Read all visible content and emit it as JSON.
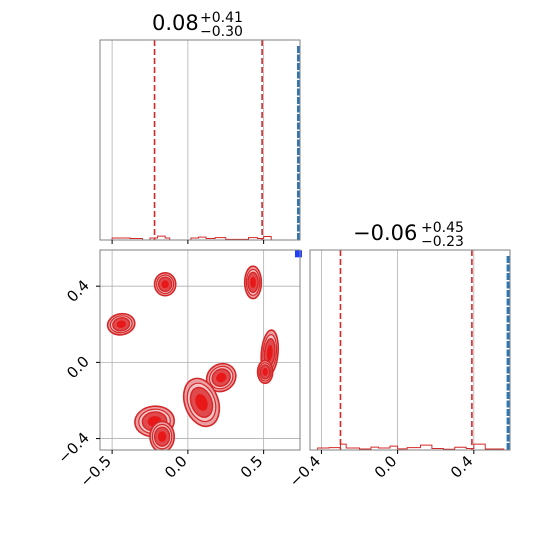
{
  "colors": {
    "histogram": "#2f77b4",
    "samples": "#d62728",
    "quantile": "#d62728",
    "truth": "#1f3fff",
    "grid": "#b0b0b0",
    "frame": "#808080"
  },
  "chart_data": [
    {
      "type": "histogram",
      "panel": "marginal-x",
      "title": {
        "value": "0.08",
        "sup": "+0.41",
        "sub": "−0.30"
      },
      "xlim": [
        -0.58,
        0.74
      ],
      "x_ticks": [
        -0.5,
        0.0,
        0.5
      ],
      "quantiles": [
        -0.22,
        0.49
      ],
      "grid": true,
      "steps": [
        {
          "x0": -0.5,
          "x1": -0.38,
          "y": 0.01
        },
        {
          "x0": -0.38,
          "x1": -0.3,
          "y": 0.008
        },
        {
          "x0": -0.3,
          "x1": -0.25,
          "y": 0.0
        },
        {
          "x0": -0.25,
          "x1": -0.2,
          "y": 0.01
        },
        {
          "x0": -0.2,
          "x1": -0.15,
          "y": 0.02
        },
        {
          "x0": -0.15,
          "x1": -0.12,
          "y": 0.01
        },
        {
          "x0": -0.12,
          "x1": 0.02,
          "y": 0.0
        },
        {
          "x0": 0.02,
          "x1": 0.07,
          "y": 0.01
        },
        {
          "x0": 0.07,
          "x1": 0.12,
          "y": 0.015
        },
        {
          "x0": 0.12,
          "x1": 0.18,
          "y": 0.008
        },
        {
          "x0": 0.18,
          "x1": 0.25,
          "y": 0.012
        },
        {
          "x0": 0.25,
          "x1": 0.4,
          "y": 0.003
        },
        {
          "x0": 0.4,
          "x1": 0.46,
          "y": 0.012
        },
        {
          "x0": 0.46,
          "x1": 0.5,
          "y": 0.008
        },
        {
          "x0": 0.5,
          "x1": 0.55,
          "y": 0.018
        },
        {
          "x0": 0.55,
          "x1": 0.72,
          "y": 0.0
        }
      ],
      "spike": {
        "x": 0.73,
        "y": 1.0
      }
    },
    {
      "type": "histogram",
      "panel": "marginal-y",
      "title": {
        "value": "−0.06",
        "sup": "+0.45",
        "sub": "−0.23"
      },
      "xlim": [
        -0.46,
        0.59
      ],
      "x_ticks": [
        -0.4,
        0.0,
        0.4
      ],
      "quantiles": [
        -0.3,
        0.39
      ],
      "grid": true,
      "steps": [
        {
          "x0": -0.42,
          "x1": -0.36,
          "y": 0.01
        },
        {
          "x0": -0.36,
          "x1": -0.3,
          "y": 0.012
        },
        {
          "x0": -0.3,
          "x1": -0.27,
          "y": 0.03
        },
        {
          "x0": -0.27,
          "x1": -0.2,
          "y": 0.01
        },
        {
          "x0": -0.2,
          "x1": -0.14,
          "y": 0.005
        },
        {
          "x0": -0.14,
          "x1": -0.1,
          "y": 0.015
        },
        {
          "x0": -0.1,
          "x1": -0.04,
          "y": 0.01
        },
        {
          "x0": -0.04,
          "x1": 0.0,
          "y": 0.02
        },
        {
          "x0": 0.0,
          "x1": 0.05,
          "y": 0.006
        },
        {
          "x0": 0.05,
          "x1": 0.12,
          "y": 0.012
        },
        {
          "x0": 0.12,
          "x1": 0.18,
          "y": 0.025
        },
        {
          "x0": 0.18,
          "x1": 0.24,
          "y": 0.008
        },
        {
          "x0": 0.24,
          "x1": 0.3,
          "y": 0.004
        },
        {
          "x0": 0.3,
          "x1": 0.36,
          "y": 0.014
        },
        {
          "x0": 0.36,
          "x1": 0.4,
          "y": 0.008
        },
        {
          "x0": 0.4,
          "x1": 0.46,
          "y": 0.03
        },
        {
          "x0": 0.46,
          "x1": 0.56,
          "y": 0.005
        }
      ],
      "spike": {
        "x": 0.58,
        "y": 1.0
      }
    },
    {
      "type": "contour",
      "panel": "joint",
      "xlim": [
        -0.58,
        0.74
      ],
      "ylim": [
        -0.46,
        0.59
      ],
      "x_ticks": [
        -0.5,
        0.0,
        0.5
      ],
      "y_ticks": [
        -0.4,
        0.0,
        0.4
      ],
      "grid": true,
      "truth": {
        "x": 0.73,
        "y": 0.57
      },
      "blobs": [
        {
          "cx": -0.44,
          "cy": 0.2,
          "rx": 0.09,
          "ry": 0.055,
          "rot": -10
        },
        {
          "cx": -0.15,
          "cy": 0.41,
          "rx": 0.07,
          "ry": 0.06,
          "rot": 0
        },
        {
          "cx": 0.43,
          "cy": 0.42,
          "rx": 0.055,
          "ry": 0.085,
          "rot": 0
        },
        {
          "cx": 0.54,
          "cy": 0.05,
          "rx": 0.055,
          "ry": 0.12,
          "rot": 5
        },
        {
          "cx": 0.51,
          "cy": -0.05,
          "rx": 0.05,
          "ry": 0.06,
          "rot": 0
        },
        {
          "cx": 0.22,
          "cy": -0.08,
          "rx": 0.1,
          "ry": 0.07,
          "rot": -35
        },
        {
          "cx": 0.09,
          "cy": -0.21,
          "rx": 0.11,
          "ry": 0.13,
          "rot": -20
        },
        {
          "cx": -0.22,
          "cy": -0.31,
          "rx": 0.13,
          "ry": 0.08,
          "rot": -5
        },
        {
          "cx": -0.17,
          "cy": -0.39,
          "rx": 0.08,
          "ry": 0.08,
          "rot": 0
        }
      ]
    }
  ]
}
